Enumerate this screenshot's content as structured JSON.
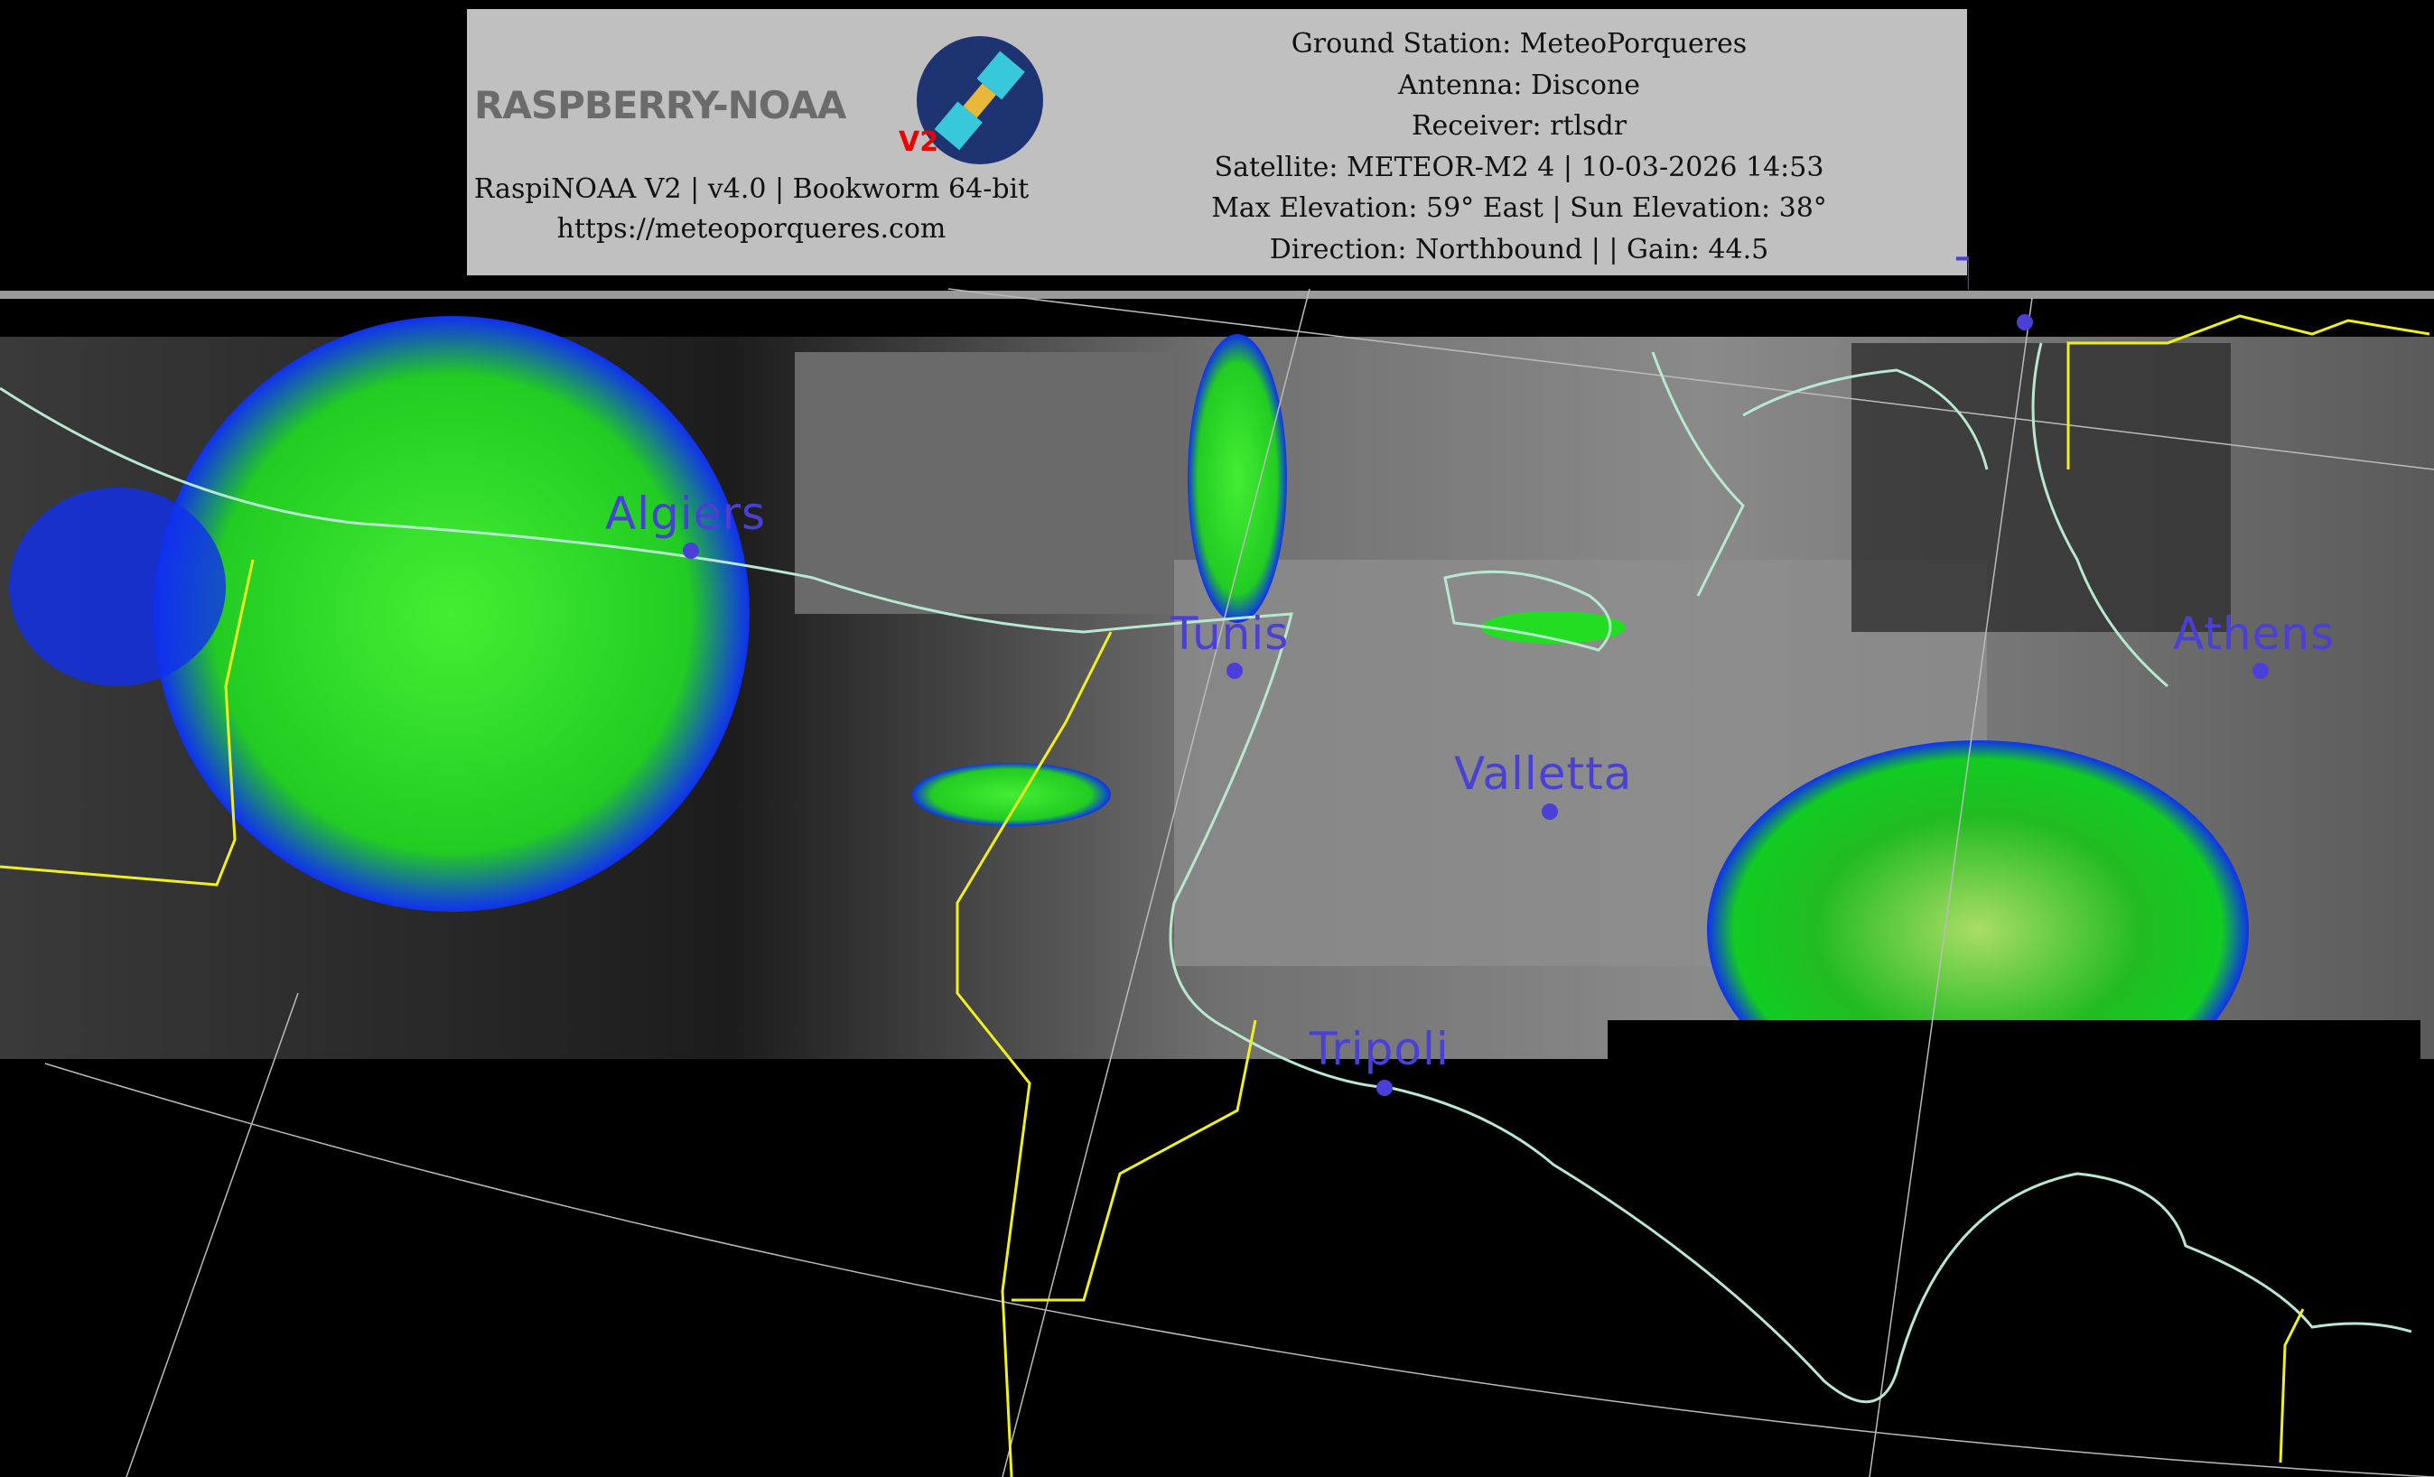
{
  "header": {
    "logo_text": "RASPBERRY-NOAA",
    "logo_version": "V2",
    "left_lines": [
      "RaspiNOAA V2 | v4.0 | Bookworm 64-bit",
      "https://meteoporqueres.com"
    ],
    "right_lines": [
      "Ground Station: MeteoPorqueres",
      "Antenna: Discone",
      "Receiver: rtlsdr",
      "Satellite: METEOR-M2 4 | 10-03-2026 14:53",
      "Max Elevation: 59° East | Sun Elevation: 38°",
      "Direction: Northbound | | Gain: 44.5"
    ]
  },
  "map": {
    "cities": [
      "Tirana",
      "Algiers",
      "Tunis",
      "Valletta",
      "Athens",
      "Tripoli"
    ],
    "colors": {
      "label": "#4a3fd6",
      "coastline": "#b8e8d0",
      "border": "#f0f020",
      "grid": "#cccccc",
      "precip_green": "#22e022",
      "precip_blue": "#1030f0"
    }
  }
}
